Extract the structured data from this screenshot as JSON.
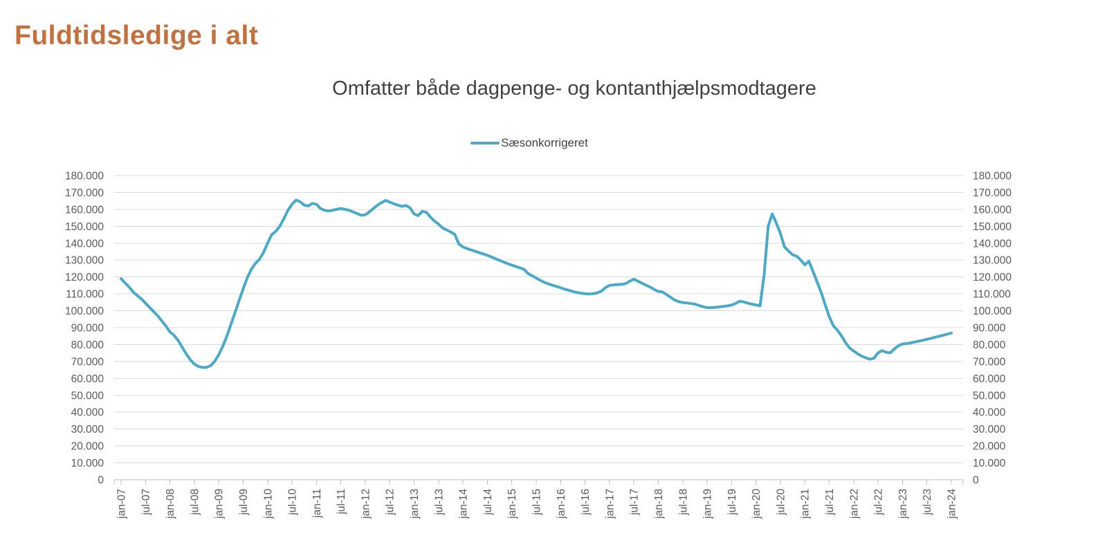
{
  "page_title": "Fuldtidsledige i alt",
  "colors": {
    "title": "#C3703C",
    "subtitle": "#404040",
    "legend_text": "#404040",
    "axis_text": "#595959",
    "gridline": "#D9D9D9",
    "axis_line": "#BFBFBF",
    "line": "#4AA9C6",
    "background": "#FFFFFF"
  },
  "chart_data": {
    "type": "line",
    "title": "Omfatter både dagpenge- og kontanthjælpsmodtagere",
    "legend": [
      {
        "label": "Sæsonkorrigeret",
        "color": "#4AA9C6"
      }
    ],
    "legend_position": "top-center",
    "grid": true,
    "frequency": "monthly",
    "x_start": "jan-07",
    "x_end": "jan-24",
    "x_tick_interval_months": 6,
    "x_tick_labels": [
      "jan-07",
      "jul-07",
      "jan-08",
      "jul-08",
      "jan-09",
      "jul-09",
      "jan-10",
      "jul-10",
      "jan-11",
      "jul-11",
      "jan-12",
      "jul-12",
      "jan-13",
      "jul-13",
      "jan-14",
      "jul-14",
      "jan-15",
      "jul-15",
      "jan-16",
      "jul-16",
      "jan-17",
      "jul-17",
      "jan-18",
      "jul-18",
      "jan-19",
      "jul-19",
      "jan-20",
      "jul-20",
      "jan-21",
      "jul-21",
      "jan-22",
      "jul-22",
      "jan-23",
      "jul-23",
      "jan-24"
    ],
    "ylim": [
      0,
      180000
    ],
    "y_tick_step": 10000,
    "y_tick_labels_top_to_bottom": [
      "180.000",
      "170.000",
      "160.000",
      "150.000",
      "140.000",
      "130.000",
      "120.000",
      "110.000",
      "100.000",
      "90.000",
      "80.000",
      "70.000",
      "60.000",
      "50.000",
      "40.000",
      "30.000",
      "20.000",
      "10.000",
      "0"
    ],
    "y_axis_sides": "both",
    "series": [
      {
        "name": "Sæsonkorrigeret",
        "color": "#4AA9C6",
        "values": [
          119000,
          116500,
          114000,
          111000,
          109000,
          107000,
          104500,
          102000,
          99500,
          97000,
          94000,
          91000,
          87500,
          85500,
          82500,
          78500,
          74500,
          71000,
          68500,
          67000,
          66500,
          66500,
          67500,
          70000,
          74000,
          79000,
          85000,
          92000,
          99000,
          106000,
          113000,
          119500,
          124500,
          128000,
          130500,
          134500,
          140000,
          145000,
          147000,
          150000,
          154500,
          159500,
          163000,
          165500,
          164500,
          162500,
          162000,
          163500,
          163000,
          160500,
          159500,
          159000,
          159500,
          160000,
          160500,
          160000,
          159500,
          158500,
          157500,
          156500,
          156800,
          158500,
          160500,
          162500,
          164000,
          165300,
          164300,
          163300,
          162500,
          161800,
          162300,
          160900,
          157300,
          156300,
          158800,
          158300,
          155500,
          153000,
          151300,
          149000,
          147800,
          146600,
          145200,
          139500,
          137800,
          136800,
          136000,
          135200,
          134400,
          133600,
          132800,
          131800,
          130800,
          129800,
          128800,
          127900,
          127000,
          126200,
          125400,
          124500,
          122000,
          120700,
          119400,
          118000,
          116800,
          115900,
          115100,
          114400,
          113600,
          112800,
          112100,
          111400,
          110800,
          110400,
          110100,
          109900,
          110100,
          110600,
          111600,
          113600,
          115000,
          115300,
          115500,
          115600,
          116100,
          117500,
          118700,
          117500,
          116300,
          115100,
          114000,
          112600,
          111400,
          111200,
          109600,
          108000,
          106400,
          105400,
          104900,
          104600,
          104300,
          103900,
          103100,
          102400,
          101900,
          101800,
          102000,
          102300,
          102600,
          102900,
          103400,
          104300,
          105700,
          105200,
          104500,
          103900,
          103400,
          102900,
          121000,
          150000,
          157300,
          151900,
          145800,
          137800,
          135400,
          133100,
          132300,
          130000,
          127200,
          129300,
          123400,
          117200,
          111000,
          103600,
          96500,
          91200,
          88500,
          85200,
          81100,
          78000,
          76200,
          74500,
          73100,
          72100,
          71300,
          71900,
          75100,
          76400,
          75400,
          75100,
          77400,
          79300,
          80300,
          80600,
          81000,
          81500,
          82000,
          82500,
          83100,
          83700,
          84300,
          84900,
          85500,
          86200,
          86800
        ]
      }
    ]
  }
}
